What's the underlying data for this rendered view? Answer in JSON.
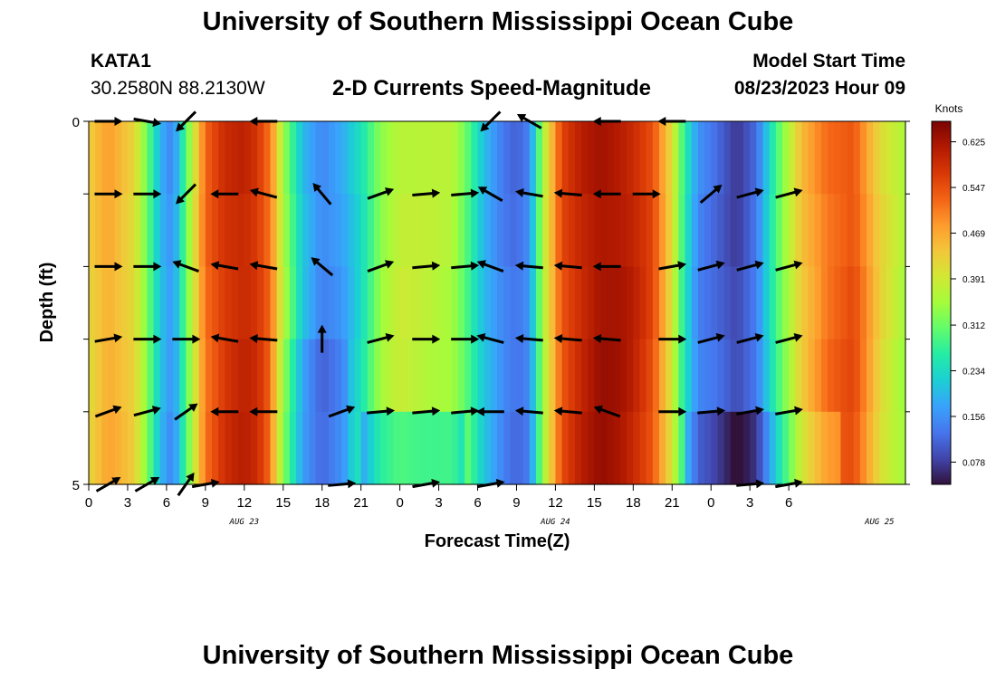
{
  "header": {
    "title": "University of Southern Mississippi Ocean Cube",
    "station": "KATA1",
    "coords": "30.2580N  88.2130W",
    "model_label": "Model Start Time",
    "model_time": "08/23/2023 Hour 09",
    "footer_title": "University of Southern Mississippi Ocean Cube"
  },
  "chart_data": {
    "type": "heatmap",
    "title": "2-D Currents Speed-Magnitude",
    "xlabel": "Forecast Time(Z)",
    "ylabel": "Depth (ft)",
    "ylim": [
      0,
      5
    ],
    "y_tick_labels": [
      "0",
      "5"
    ],
    "x_tick_labels": [
      "0",
      "3",
      "6",
      "9",
      "12",
      "15",
      "18",
      "21",
      "0",
      "3",
      "6",
      "9",
      "12",
      "15",
      "18",
      "21",
      "0",
      "3",
      "6"
    ],
    "date_labels": [
      {
        "label": "AUG 23",
        "hour": 12
      },
      {
        "label": "AUG 24",
        "hour": 36
      },
      {
        "label": "AUG 25",
        "hour": 61
      }
    ],
    "x_range_hours": [
      0,
      63
    ],
    "depth_levels": [
      0,
      1,
      2,
      3,
      4,
      5
    ],
    "colorbar": {
      "title": "Knots",
      "min": 0.04,
      "max": 0.66,
      "tick_labels": [
        "0.625",
        "0.547",
        "0.469",
        "0.391",
        "0.312",
        "0.234",
        "0.156",
        "0.078"
      ],
      "colors": [
        "#30123b",
        "#4145ab",
        "#4675ed",
        "#39a2fc",
        "#1bcfd4",
        "#24eca6",
        "#61fc6c",
        "#a4fc3b",
        "#d1e834",
        "#f3c63a",
        "#fe9b2d",
        "#f36315",
        "#d93806",
        "#b11901",
        "#7a0403"
      ]
    },
    "speed_profile_hours": [
      0,
      1.5,
      3.5,
      4.5,
      5.5,
      6.5,
      7.5,
      9,
      10.5,
      12,
      13,
      14,
      15,
      16.5,
      18,
      19.5,
      21,
      22.5,
      24,
      26,
      28,
      29,
      30.5,
      32,
      33,
      34,
      35,
      36.5,
      38,
      39.5,
      41,
      42,
      43.5,
      45,
      46,
      47,
      48.5,
      50,
      51.5,
      53,
      55,
      57,
      59,
      61,
      63
    ],
    "speed_profile_knots": [
      0.42,
      0.47,
      0.42,
      0.32,
      0.2,
      0.15,
      0.3,
      0.52,
      0.58,
      0.6,
      0.58,
      0.52,
      0.36,
      0.2,
      0.14,
      0.17,
      0.24,
      0.34,
      0.38,
      0.37,
      0.36,
      0.31,
      0.2,
      0.14,
      0.12,
      0.15,
      0.35,
      0.55,
      0.6,
      0.63,
      0.62,
      0.6,
      0.55,
      0.4,
      0.25,
      0.15,
      0.12,
      0.08,
      0.13,
      0.28,
      0.44,
      0.52,
      0.55,
      0.42,
      0.35
    ],
    "vectors": [
      {
        "hour": 1.5,
        "depth": 0,
        "angle": 0
      },
      {
        "hour": 4.5,
        "depth": 0,
        "angle": 10
      },
      {
        "hour": 7.5,
        "depth": 0,
        "angle": 135
      },
      {
        "hour": 13.5,
        "depth": 0,
        "angle": 180
      },
      {
        "hour": 31,
        "depth": 0,
        "angle": 135
      },
      {
        "hour": 34,
        "depth": 0,
        "angle": -150
      },
      {
        "hour": 40,
        "depth": 0,
        "angle": 180
      },
      {
        "hour": 45,
        "depth": 0,
        "angle": 180
      },
      {
        "hour": 1.5,
        "depth": 1,
        "angle": 0
      },
      {
        "hour": 4.5,
        "depth": 1,
        "angle": 0
      },
      {
        "hour": 7.5,
        "depth": 1,
        "angle": 135
      },
      {
        "hour": 10.5,
        "depth": 1,
        "angle": 180
      },
      {
        "hour": 13.5,
        "depth": 1,
        "angle": -165
      },
      {
        "hour": 18,
        "depth": 1,
        "angle": -130
      },
      {
        "hour": 22.5,
        "depth": 1,
        "angle": -20
      },
      {
        "hour": 26,
        "depth": 1,
        "angle": -5
      },
      {
        "hour": 29,
        "depth": 1,
        "angle": -5
      },
      {
        "hour": 31,
        "depth": 1,
        "angle": -150
      },
      {
        "hour": 34,
        "depth": 1,
        "angle": -170
      },
      {
        "hour": 37,
        "depth": 1,
        "angle": -175
      },
      {
        "hour": 40,
        "depth": 1,
        "angle": 180
      },
      {
        "hour": 43,
        "depth": 1,
        "angle": 0
      },
      {
        "hour": 48,
        "depth": 1,
        "angle": -40
      },
      {
        "hour": 51,
        "depth": 1,
        "angle": -15
      },
      {
        "hour": 54,
        "depth": 1,
        "angle": -15
      },
      {
        "hour": 1.5,
        "depth": 2,
        "angle": 0
      },
      {
        "hour": 4.5,
        "depth": 2,
        "angle": 0
      },
      {
        "hour": 7.5,
        "depth": 2,
        "angle": -160
      },
      {
        "hour": 10.5,
        "depth": 2,
        "angle": -170
      },
      {
        "hour": 13.5,
        "depth": 2,
        "angle": -170
      },
      {
        "hour": 18,
        "depth": 2,
        "angle": -140
      },
      {
        "hour": 22.5,
        "depth": 2,
        "angle": -20
      },
      {
        "hour": 26,
        "depth": 2,
        "angle": -5
      },
      {
        "hour": 29,
        "depth": 2,
        "angle": -5
      },
      {
        "hour": 31,
        "depth": 2,
        "angle": -160
      },
      {
        "hour": 34,
        "depth": 2,
        "angle": -175
      },
      {
        "hour": 37,
        "depth": 2,
        "angle": -175
      },
      {
        "hour": 40,
        "depth": 2,
        "angle": 180
      },
      {
        "hour": 45,
        "depth": 2,
        "angle": -10
      },
      {
        "hour": 48,
        "depth": 2,
        "angle": -15
      },
      {
        "hour": 51,
        "depth": 2,
        "angle": -15
      },
      {
        "hour": 54,
        "depth": 2,
        "angle": -15
      },
      {
        "hour": 1.5,
        "depth": 3,
        "angle": -10
      },
      {
        "hour": 4.5,
        "depth": 3,
        "angle": 0
      },
      {
        "hour": 7.5,
        "depth": 3,
        "angle": 0
      },
      {
        "hour": 10.5,
        "depth": 3,
        "angle": -170
      },
      {
        "hour": 13.5,
        "depth": 3,
        "angle": -175
      },
      {
        "hour": 18,
        "depth": 3,
        "angle": -90
      },
      {
        "hour": 22.5,
        "depth": 3,
        "angle": -15
      },
      {
        "hour": 26,
        "depth": 3,
        "angle": 0
      },
      {
        "hour": 29,
        "depth": 3,
        "angle": 0
      },
      {
        "hour": 31,
        "depth": 3,
        "angle": -165
      },
      {
        "hour": 34,
        "depth": 3,
        "angle": -175
      },
      {
        "hour": 37,
        "depth": 3,
        "angle": -175
      },
      {
        "hour": 40,
        "depth": 3,
        "angle": -175
      },
      {
        "hour": 45,
        "depth": 3,
        "angle": 0
      },
      {
        "hour": 48,
        "depth": 3,
        "angle": -15
      },
      {
        "hour": 51,
        "depth": 3,
        "angle": -15
      },
      {
        "hour": 54,
        "depth": 3,
        "angle": -15
      },
      {
        "hour": 1.5,
        "depth": 4,
        "angle": -20
      },
      {
        "hour": 4.5,
        "depth": 4,
        "angle": -15
      },
      {
        "hour": 7.5,
        "depth": 4,
        "angle": -35
      },
      {
        "hour": 10.5,
        "depth": 4,
        "angle": 180
      },
      {
        "hour": 13.5,
        "depth": 4,
        "angle": 180
      },
      {
        "hour": 19.5,
        "depth": 4,
        "angle": -20
      },
      {
        "hour": 22.5,
        "depth": 4,
        "angle": -5
      },
      {
        "hour": 26,
        "depth": 4,
        "angle": -5
      },
      {
        "hour": 29,
        "depth": 4,
        "angle": -5
      },
      {
        "hour": 31,
        "depth": 4,
        "angle": 180
      },
      {
        "hour": 34,
        "depth": 4,
        "angle": -175
      },
      {
        "hour": 37,
        "depth": 4,
        "angle": -175
      },
      {
        "hour": 40,
        "depth": 4,
        "angle": -160
      },
      {
        "hour": 45,
        "depth": 4,
        "angle": 0
      },
      {
        "hour": 48,
        "depth": 4,
        "angle": -5
      },
      {
        "hour": 51,
        "depth": 4,
        "angle": -10
      },
      {
        "hour": 54,
        "depth": 4,
        "angle": -10
      },
      {
        "hour": 1.5,
        "depth": 5,
        "angle": -30
      },
      {
        "hour": 4.5,
        "depth": 5,
        "angle": -30
      },
      {
        "hour": 7.5,
        "depth": 5,
        "angle": -55
      },
      {
        "hour": 9,
        "depth": 5,
        "angle": -10
      },
      {
        "hour": 19.5,
        "depth": 5,
        "angle": -5
      },
      {
        "hour": 26,
        "depth": 5,
        "angle": -10
      },
      {
        "hour": 31,
        "depth": 5,
        "angle": -10
      },
      {
        "hour": 51,
        "depth": 5,
        "angle": -5
      },
      {
        "hour": 54,
        "depth": 5,
        "angle": -10
      }
    ]
  }
}
